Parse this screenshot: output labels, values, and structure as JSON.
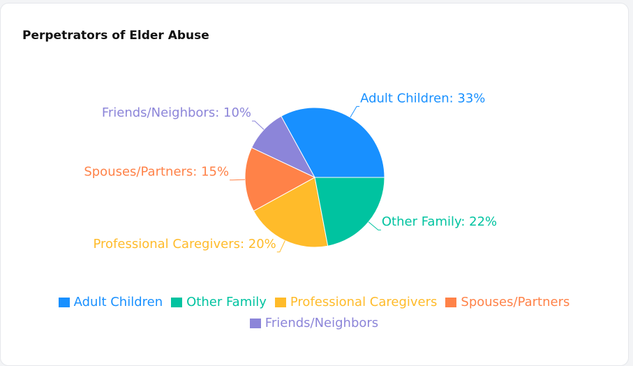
{
  "chart_data": {
    "type": "pie",
    "title": "Perpetrators of Elder Abuse",
    "slices": [
      {
        "name": "Adult Children",
        "value": 33,
        "label": "Adult Children: 33%",
        "color": "#1890ff"
      },
      {
        "name": "Friends/Neighbors",
        "value": 10,
        "label": "Friends/Neighbors: 10%",
        "color": "#8c85d9"
      },
      {
        "name": "Spouses/Partners",
        "value": 15,
        "label": "Spouses/Partners: 15%",
        "color": "#ff8248"
      },
      {
        "name": "Professional Caregivers",
        "value": 20,
        "label": "Professional Caregivers: 20%",
        "color": "#ffbb2a"
      },
      {
        "name": "Other Family",
        "value": 22,
        "label": "Other Family: 22%",
        "color": "#00c3a0"
      }
    ],
    "legend": {
      "position": "bottom",
      "order": [
        "Adult Children",
        "Other Family",
        "Professional Caregivers",
        "Spouses/Partners",
        "Friends/Neighbors"
      ]
    }
  }
}
